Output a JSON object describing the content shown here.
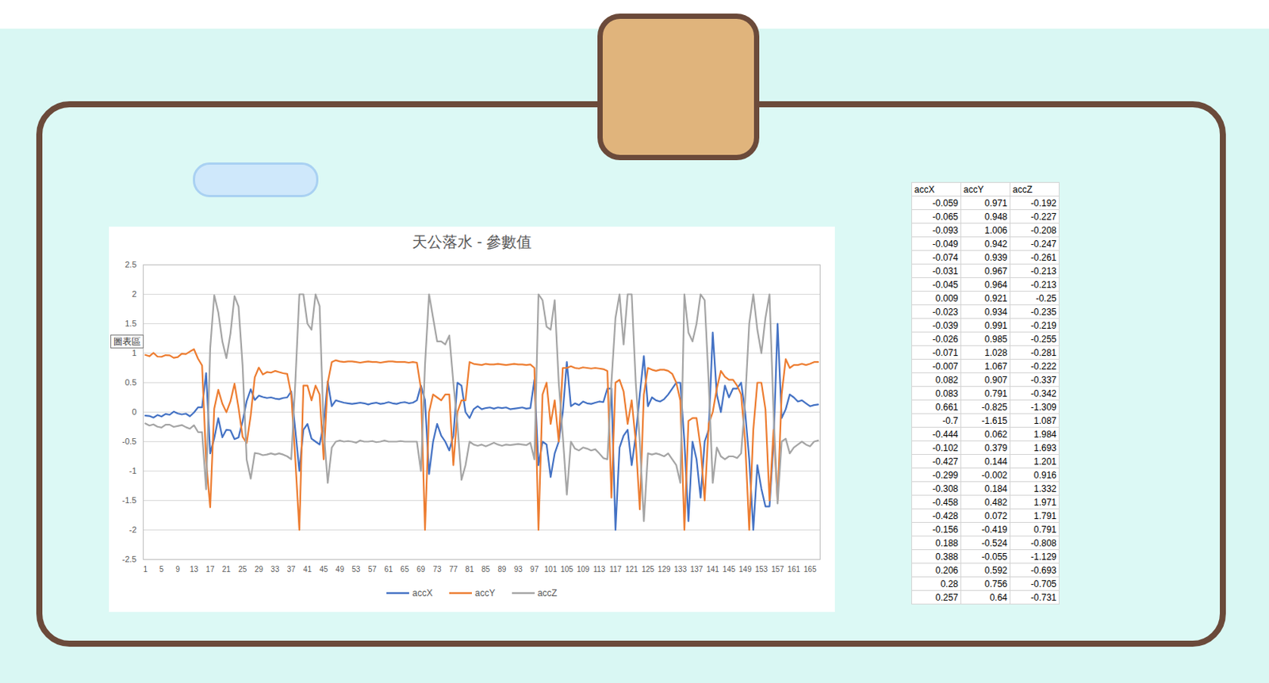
{
  "chart_data": {
    "type": "line",
    "title": "天公落水 - 參數值",
    "annotations": [
      "圖表區"
    ],
    "x": [
      1,
      2,
      3,
      4,
      5,
      6,
      7,
      8,
      9,
      10,
      11,
      12,
      13,
      14,
      15,
      16,
      17,
      18,
      19,
      20,
      21,
      22,
      23,
      24,
      25,
      26,
      27,
      28,
      29,
      30,
      31,
      32,
      33,
      34,
      35,
      36,
      37,
      38,
      39,
      40,
      41,
      42,
      43,
      44,
      45,
      46,
      47,
      48,
      49,
      50,
      51,
      52,
      53,
      54,
      55,
      56,
      57,
      58,
      59,
      60,
      61,
      62,
      63,
      64,
      65,
      66,
      67,
      68,
      69,
      70,
      71,
      72,
      73,
      74,
      75,
      76,
      77,
      78,
      79,
      80,
      81,
      82,
      83,
      84,
      85,
      86,
      87,
      88,
      89,
      90,
      91,
      92,
      93,
      94,
      95,
      96,
      97,
      98,
      99,
      100,
      101,
      102,
      103,
      104,
      105,
      106,
      107,
      108,
      109,
      110,
      111,
      112,
      113,
      114,
      115,
      116,
      117,
      118,
      119,
      120,
      121,
      122,
      123,
      124,
      125,
      126,
      127,
      128,
      129,
      130,
      131,
      132,
      133,
      134,
      135,
      136,
      137,
      138,
      139,
      140,
      141,
      142,
      143,
      144,
      145,
      146,
      147,
      148,
      149,
      150,
      151,
      152,
      153,
      154,
      155,
      156,
      157,
      158,
      159,
      160,
      161,
      162,
      163,
      164,
      165,
      166,
      167
    ],
    "xlim": [
      0.5,
      167.5
    ],
    "xticks": [
      1,
      5,
      9,
      13,
      17,
      21,
      25,
      29,
      33,
      37,
      41,
      45,
      49,
      53,
      57,
      61,
      65,
      69,
      73,
      77,
      81,
      85,
      89,
      93,
      97,
      101,
      105,
      109,
      113,
      117,
      121,
      125,
      129,
      133,
      137,
      141,
      145,
      149,
      153,
      157,
      161,
      165
    ],
    "ylim": [
      -2.5,
      2.5
    ],
    "yticks": [
      -2.5,
      -2,
      -1.5,
      -1,
      -0.5,
      0,
      0.5,
      1,
      1.5,
      2,
      2.5
    ],
    "grid": true,
    "legend": "bottom",
    "series": [
      {
        "name": "accX",
        "color": "#4472c4",
        "values": [
          -0.059,
          -0.065,
          -0.093,
          -0.049,
          -0.074,
          -0.031,
          -0.045,
          0.009,
          -0.023,
          -0.039,
          -0.026,
          -0.071,
          -0.007,
          0.082,
          0.083,
          0.661,
          -0.7,
          -0.444,
          -0.102,
          -0.427,
          -0.299,
          -0.308,
          -0.458,
          -0.428,
          -0.156,
          0.188,
          0.388,
          0.206,
          0.28,
          0.257,
          0.24,
          0.25,
          0.23,
          0.22,
          0.24,
          0.25,
          0.35,
          -0.3,
          -1.0,
          -0.3,
          -0.2,
          -0.45,
          -0.5,
          -0.55,
          -0.2,
          0.52,
          0.1,
          0.2,
          0.18,
          0.16,
          0.15,
          0.14,
          0.15,
          0.16,
          0.15,
          0.13,
          0.15,
          0.16,
          0.14,
          0.15,
          0.17,
          0.15,
          0.14,
          0.16,
          0.17,
          0.15,
          0.16,
          0.2,
          0.45,
          0.2,
          -1.05,
          -0.5,
          -0.2,
          -0.4,
          -0.5,
          -0.65,
          -0.4,
          0.5,
          0.45,
          0.0,
          -0.1,
          0.05,
          0.1,
          0.05,
          0.07,
          0.08,
          0.06,
          0.08,
          0.07,
          0.08,
          0.05,
          0.06,
          0.07,
          0.08,
          0.06,
          0.07,
          0.55,
          -0.9,
          -0.5,
          -0.55,
          -1.1,
          -0.7,
          -0.5,
          0.0,
          0.85,
          0.1,
          0.15,
          0.12,
          0.18,
          0.15,
          0.14,
          0.16,
          0.18,
          0.17,
          0.4,
          0.4,
          -2.0,
          -0.6,
          -0.4,
          -0.3,
          -0.9,
          -0.4,
          0.3,
          0.95,
          0.1,
          0.25,
          0.2,
          0.18,
          0.22,
          0.3,
          0.4,
          0.5,
          0.5,
          -0.5,
          -1.85,
          -0.5,
          -0.8,
          -1.45,
          -0.5,
          -0.3,
          1.35,
          0.3,
          0.0,
          0.45,
          0.25,
          0.4,
          0.4,
          0.5,
          0.0,
          -0.8,
          -2.0,
          -0.9,
          -1.3,
          -1.6,
          -1.6,
          -0.5,
          1.5,
          -0.1,
          0.05,
          0.3,
          0.25,
          0.18,
          0.2,
          0.15,
          0.1,
          0.12,
          0.13
        ]
      },
      {
        "name": "accY",
        "color": "#ed7d31",
        "values": [
          0.971,
          0.948,
          1.006,
          0.942,
          0.939,
          0.967,
          0.964,
          0.921,
          0.934,
          0.991,
          0.985,
          1.028,
          1.067,
          0.907,
          0.791,
          -0.825,
          -1.615,
          0.062,
          0.379,
          0.144,
          -0.002,
          0.184,
          0.482,
          0.072,
          -0.419,
          -0.524,
          -0.055,
          0.592,
          0.756,
          0.64,
          0.68,
          0.67,
          0.7,
          0.68,
          0.66,
          0.65,
          0.3,
          -0.8,
          -2.0,
          0.45,
          0.45,
          0.2,
          0.45,
          0.3,
          -0.8,
          0.5,
          0.85,
          0.88,
          0.86,
          0.85,
          0.86,
          0.86,
          0.85,
          0.84,
          0.85,
          0.86,
          0.85,
          0.85,
          0.84,
          0.85,
          0.86,
          0.86,
          0.85,
          0.85,
          0.85,
          0.84,
          0.85,
          0.84,
          0.4,
          -2.0,
          0.0,
          0.3,
          0.25,
          0.2,
          0.3,
          0.3,
          -0.9,
          0.0,
          0.2,
          0.2,
          0.85,
          0.82,
          0.81,
          0.8,
          0.82,
          0.81,
          0.81,
          0.82,
          0.81,
          0.8,
          0.81,
          0.82,
          0.81,
          0.81,
          0.8,
          0.81,
          0.75,
          -2.0,
          0.3,
          0.5,
          -0.2,
          0.2,
          -0.5,
          0.75,
          0.75,
          0.78,
          0.75,
          0.74,
          0.76,
          0.75,
          0.74,
          0.75,
          0.74,
          0.73,
          0.7,
          -1.45,
          0.5,
          0.55,
          0.35,
          -0.2,
          0.2,
          -0.5,
          -1.65,
          0.3,
          0.75,
          0.72,
          0.7,
          0.72,
          0.72,
          0.7,
          0.65,
          0.5,
          0.2,
          -2.0,
          -0.15,
          -0.1,
          -0.1,
          -0.6,
          -1.5,
          -0.2,
          0.0,
          0.4,
          0.7,
          0.6,
          0.55,
          0.55,
          0.45,
          0.3,
          -0.5,
          -2.0,
          -0.3,
          0.5,
          0.5,
          0.05,
          -1.5,
          -0.3,
          -1.5,
          0.3,
          0.9,
          0.75,
          0.8,
          0.8,
          0.82,
          0.8,
          0.82,
          0.85,
          0.85
        ]
      },
      {
        "name": "accZ",
        "color": "#a5a5a5",
        "values": [
          -0.192,
          -0.227,
          -0.208,
          -0.247,
          -0.261,
          -0.213,
          -0.213,
          -0.25,
          -0.235,
          -0.219,
          -0.255,
          -0.281,
          -0.222,
          -0.337,
          -0.342,
          -1.309,
          1.087,
          1.984,
          1.693,
          1.201,
          0.916,
          1.332,
          1.971,
          1.791,
          0.791,
          -0.808,
          -1.129,
          -0.693,
          -0.705,
          -0.731,
          -0.72,
          -0.7,
          -0.72,
          -0.7,
          -0.72,
          -0.75,
          -0.8,
          0.5,
          2.0,
          2.0,
          1.5,
          1.4,
          2.0,
          1.8,
          -0.3,
          -1.2,
          -0.6,
          -0.5,
          -0.48,
          -0.5,
          -0.49,
          -0.5,
          -0.52,
          -0.48,
          -0.5,
          -0.5,
          -0.49,
          -0.51,
          -0.5,
          -0.48,
          -0.5,
          -0.5,
          -0.5,
          -0.49,
          -0.5,
          -0.5,
          -0.5,
          -0.5,
          -1.0,
          0.8,
          2.0,
          1.6,
          1.2,
          1.2,
          1.15,
          1.3,
          0.5,
          -0.2,
          -1.15,
          -0.9,
          -0.5,
          -0.55,
          -0.57,
          -0.55,
          -0.58,
          -0.55,
          -0.52,
          -0.55,
          -0.57,
          -0.55,
          -0.56,
          -0.55,
          -0.54,
          -0.55,
          -0.56,
          -0.52,
          -0.8,
          2.0,
          1.9,
          1.45,
          1.4,
          1.9,
          0.5,
          -0.4,
          -1.4,
          -0.5,
          -0.62,
          -0.65,
          -0.6,
          -0.62,
          -0.65,
          -0.63,
          -0.7,
          -0.78,
          -0.8,
          0.5,
          1.6,
          2.0,
          1.15,
          2.0,
          2.0,
          0.5,
          -0.5,
          -1.85,
          -0.7,
          -0.72,
          -0.7,
          -0.72,
          -0.75,
          -0.7,
          -0.8,
          -0.9,
          -1.2,
          2.0,
          1.35,
          1.2,
          1.5,
          2.0,
          1.9,
          0.5,
          -1.2,
          -0.6,
          -0.75,
          -0.8,
          -0.75,
          -0.75,
          -0.78,
          -0.7,
          0.2,
          1.5,
          2.0,
          1.4,
          1.0,
          1.6,
          2.0,
          0.0,
          -1.55,
          -0.5,
          -0.45,
          -0.7,
          -0.6,
          -0.55,
          -0.5,
          -0.55,
          -0.58,
          -0.5,
          -0.48
        ]
      }
    ]
  },
  "table": {
    "header": [
      "accX",
      "accY",
      "accZ"
    ],
    "rows": [
      [
        "-0.059",
        "0.971",
        "-0.192"
      ],
      [
        "-0.065",
        "0.948",
        "-0.227"
      ],
      [
        "-0.093",
        "1.006",
        "-0.208"
      ],
      [
        "-0.049",
        "0.942",
        "-0.247"
      ],
      [
        "-0.074",
        "0.939",
        "-0.261"
      ],
      [
        "-0.031",
        "0.967",
        "-0.213"
      ],
      [
        "-0.045",
        "0.964",
        "-0.213"
      ],
      [
        "0.009",
        "0.921",
        "-0.25"
      ],
      [
        "-0.023",
        "0.934",
        "-0.235"
      ],
      [
        "-0.039",
        "0.991",
        "-0.219"
      ],
      [
        "-0.026",
        "0.985",
        "-0.255"
      ],
      [
        "-0.071",
        "1.028",
        "-0.281"
      ],
      [
        "-0.007",
        "1.067",
        "-0.222"
      ],
      [
        "0.082",
        "0.907",
        "-0.337"
      ],
      [
        "0.083",
        "0.791",
        "-0.342"
      ],
      [
        "0.661",
        "-0.825",
        "-1.309"
      ],
      [
        "-0.7",
        "-1.615",
        "1.087"
      ],
      [
        "-0.444",
        "0.062",
        "1.984"
      ],
      [
        "-0.102",
        "0.379",
        "1.693"
      ],
      [
        "-0.427",
        "0.144",
        "1.201"
      ],
      [
        "-0.299",
        "-0.002",
        "0.916"
      ],
      [
        "-0.308",
        "0.184",
        "1.332"
      ],
      [
        "-0.458",
        "0.482",
        "1.971"
      ],
      [
        "-0.428",
        "0.072",
        "1.791"
      ],
      [
        "-0.156",
        "-0.419",
        "0.791"
      ],
      [
        "0.188",
        "-0.524",
        "-0.808"
      ],
      [
        "0.388",
        "-0.055",
        "-1.129"
      ],
      [
        "0.206",
        "0.592",
        "-0.693"
      ],
      [
        "0.28",
        "0.756",
        "-0.705"
      ],
      [
        "0.257",
        "0.64",
        "-0.731"
      ]
    ]
  }
}
